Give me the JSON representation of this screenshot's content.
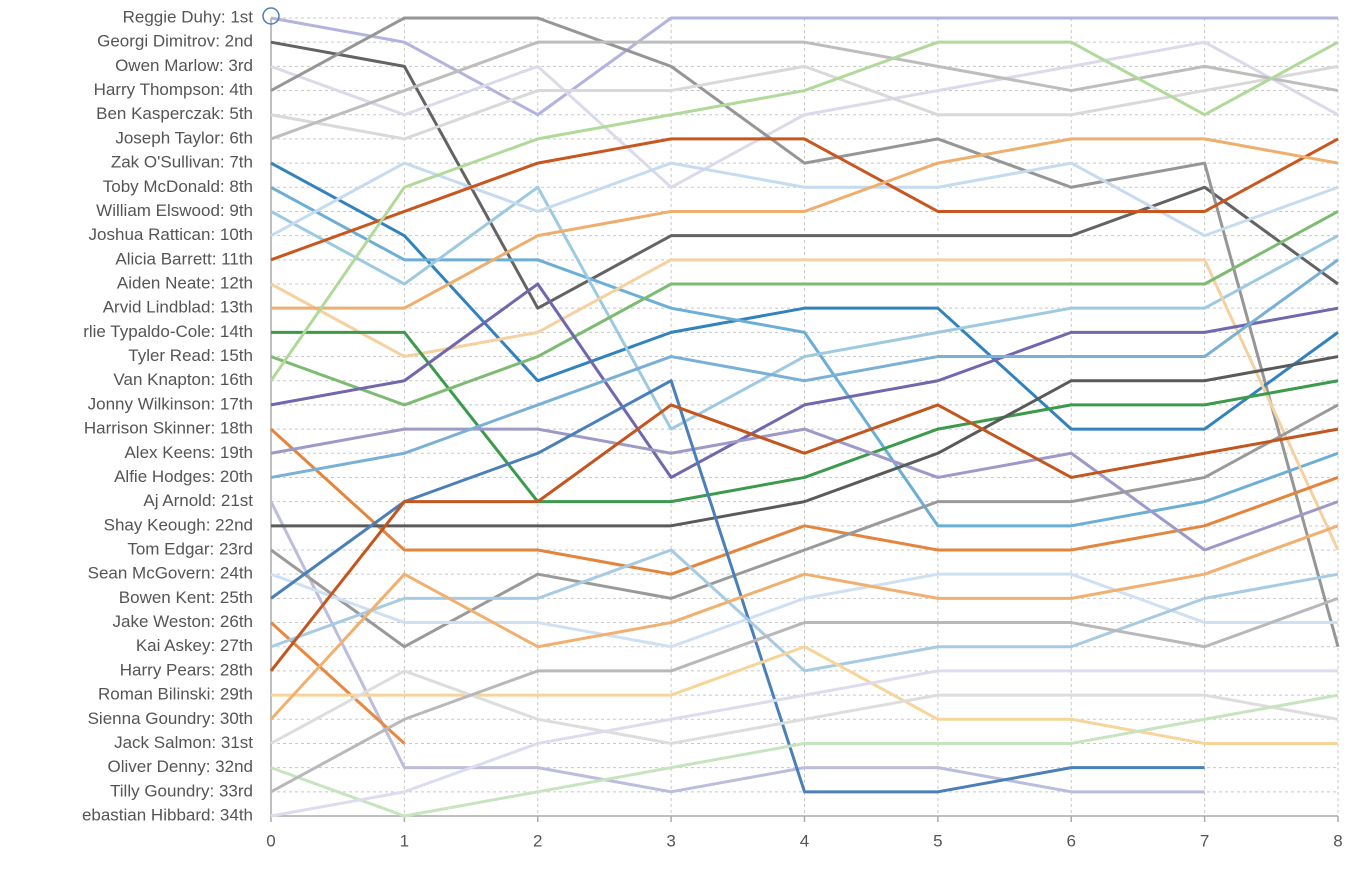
{
  "chart_data": {
    "type": "line",
    "x": [
      0,
      1,
      2,
      3,
      4,
      5,
      6,
      7,
      8
    ],
    "xlim": [
      0,
      8
    ],
    "xticks": [
      0,
      1,
      2,
      3,
      4,
      5,
      6,
      7,
      8
    ],
    "ylim": [
      1,
      34
    ],
    "y_inverted": true,
    "grid": true,
    "yticks": [
      {
        "value": 1,
        "label": "Reggie Duhy: 1st"
      },
      {
        "value": 2,
        "label": "Georgi Dimitrov: 2nd"
      },
      {
        "value": 3,
        "label": "Owen Marlow: 3rd"
      },
      {
        "value": 4,
        "label": "Harry Thompson: 4th"
      },
      {
        "value": 5,
        "label": "Ben Kasperczak: 5th"
      },
      {
        "value": 6,
        "label": "Joseph Taylor: 6th"
      },
      {
        "value": 7,
        "label": "Zak O'Sullivan: 7th"
      },
      {
        "value": 8,
        "label": "Toby McDonald: 8th"
      },
      {
        "value": 9,
        "label": "William Elswood: 9th"
      },
      {
        "value": 10,
        "label": "Joshua Rattican: 10th"
      },
      {
        "value": 11,
        "label": "Alicia Barrett: 11th"
      },
      {
        "value": 12,
        "label": "Aiden Neate: 12th"
      },
      {
        "value": 13,
        "label": "Arvid Lindblad: 13th"
      },
      {
        "value": 14,
        "label": "rlie Typaldo-Cole: 14th"
      },
      {
        "value": 15,
        "label": "Tyler Read: 15th"
      },
      {
        "value": 16,
        "label": "Van Knapton: 16th"
      },
      {
        "value": 17,
        "label": "Jonny Wilkinson: 17th"
      },
      {
        "value": 18,
        "label": "Harrison Skinner: 18th"
      },
      {
        "value": 19,
        "label": "Alex Keens: 19th"
      },
      {
        "value": 20,
        "label": "Alfie Hodges: 20th"
      },
      {
        "value": 21,
        "label": "Aj Arnold: 21st"
      },
      {
        "value": 22,
        "label": "Shay Keough: 22nd"
      },
      {
        "value": 23,
        "label": "Tom Edgar: 23rd"
      },
      {
        "value": 24,
        "label": "Sean McGovern: 24th"
      },
      {
        "value": 25,
        "label": "Bowen Kent: 25th"
      },
      {
        "value": 26,
        "label": "Jake Weston: 26th"
      },
      {
        "value": 27,
        "label": "Kai Askey: 27th"
      },
      {
        "value": 28,
        "label": "Harry Pears: 28th"
      },
      {
        "value": 29,
        "label": "Roman Bilinski: 29th"
      },
      {
        "value": 30,
        "label": "Sienna Goundry: 30th"
      },
      {
        "value": 31,
        "label": "Jack Salmon: 31st"
      },
      {
        "value": 32,
        "label": "Oliver Denny: 32nd"
      },
      {
        "value": 33,
        "label": "Tilly Goundry: 33rd"
      },
      {
        "value": 34,
        "label": "ebastian Hibbard: 34th"
      }
    ],
    "series": [
      {
        "color": "#b3b3dd",
        "values": [
          1,
          2,
          5,
          1,
          1,
          1,
          1,
          1,
          1
        ]
      },
      {
        "color": "#636363",
        "values": [
          2,
          3,
          13,
          10,
          10,
          10,
          10,
          8,
          12
        ]
      },
      {
        "color": "#dadaeb",
        "values": [
          3,
          5,
          3,
          8,
          5,
          4,
          3,
          2,
          5
        ]
      },
      {
        "color": "#969696",
        "values": [
          4,
          1,
          1,
          3,
          7,
          6,
          8,
          7,
          27
        ]
      },
      {
        "color": "#d9d9d9",
        "values": [
          5,
          6,
          4,
          4,
          3,
          5,
          5,
          4,
          3
        ]
      },
      {
        "color": "#bdbdbd",
        "values": [
          6,
          4,
          2,
          2,
          2,
          3,
          4,
          3,
          4
        ]
      },
      {
        "color": "#3182bd",
        "values": [
          7,
          10,
          16,
          14,
          13,
          13,
          18,
          18,
          14
        ]
      },
      {
        "color": "#6baed6",
        "values": [
          8,
          11,
          11,
          13,
          14,
          22,
          22,
          21,
          19
        ]
      },
      {
        "color": "#9ecae1",
        "values": [
          9,
          12,
          8,
          18,
          15,
          14,
          13,
          13,
          10
        ]
      },
      {
        "color": "#c6dbef",
        "values": [
          10,
          7,
          9,
          7,
          8,
          8,
          7,
          10,
          8
        ]
      },
      {
        "color": "#c8561f",
        "values": [
          11,
          9,
          7,
          6,
          6,
          9,
          9,
          9,
          6
        ]
      },
      {
        "color": "#f5d0a0",
        "values": [
          12,
          15,
          14,
          11,
          11,
          11,
          11,
          11,
          23
        ]
      },
      {
        "color": "#eeae6e",
        "values": [
          13,
          13,
          10,
          9,
          9,
          7,
          6,
          6,
          7
        ]
      },
      {
        "color": "#3b9a4b",
        "values": [
          14,
          14,
          21,
          21,
          20,
          18,
          17,
          17,
          16
        ]
      },
      {
        "color": "#7dbb72",
        "values": [
          15,
          17,
          15,
          12,
          12,
          12,
          12,
          12,
          9
        ]
      },
      {
        "color": "#b0d99a",
        "values": [
          16,
          8,
          6,
          5,
          4,
          2,
          2,
          5,
          2
        ]
      },
      {
        "color": "#7067ad",
        "values": [
          17,
          16,
          12,
          20,
          17,
          16,
          14,
          14,
          13
        ]
      },
      {
        "color": "#e3853d",
        "values": [
          18,
          23,
          23,
          24,
          22,
          23,
          23,
          22,
          20
        ]
      },
      {
        "color": "#9e9ac8",
        "values": [
          19,
          18,
          18,
          19,
          18,
          20,
          19,
          23,
          21
        ]
      },
      {
        "color": "#7aafd6",
        "values": [
          20,
          19,
          17,
          15,
          16,
          15,
          15,
          15,
          11
        ]
      },
      {
        "color": "#bcbddc",
        "values": [
          21,
          32,
          32,
          33,
          32,
          32,
          33,
          33,
          null
        ]
      },
      {
        "color": "#5a5a5a",
        "values": [
          22,
          22,
          22,
          22,
          21,
          19,
          16,
          16,
          15
        ]
      },
      {
        "color": "#9a9a9a",
        "values": [
          23,
          27,
          24,
          25,
          23,
          21,
          21,
          20,
          17
        ]
      },
      {
        "color": "#cfe0f2",
        "values": [
          24,
          26,
          26,
          27,
          25,
          24,
          24,
          26,
          26
        ]
      },
      {
        "color": "#4a7fb8",
        "values": [
          25,
          21,
          19,
          16,
          33,
          33,
          32,
          32,
          null
        ]
      },
      {
        "color": "#e8873f",
        "values": [
          26,
          31,
          null,
          null,
          null,
          null,
          null,
          null,
          null
        ]
      },
      {
        "color": "#a7cbe3",
        "values": [
          27,
          25,
          25,
          23,
          28,
          27,
          27,
          25,
          24
        ]
      },
      {
        "color": "#c3551f",
        "values": [
          28,
          21,
          21,
          17,
          19,
          17,
          20,
          19,
          18
        ]
      },
      {
        "color": "#f7d59a",
        "values": [
          29,
          29,
          29,
          29,
          27,
          30,
          30,
          31,
          31
        ]
      },
      {
        "color": "#f0b070",
        "values": [
          30,
          24,
          27,
          26,
          24,
          25,
          25,
          24,
          22
        ]
      },
      {
        "color": "#dddddd",
        "values": [
          31,
          28,
          30,
          31,
          30,
          29,
          29,
          29,
          30
        ]
      },
      {
        "color": "#c7e3bf",
        "values": [
          32,
          34,
          33,
          32,
          31,
          31,
          31,
          30,
          29
        ]
      },
      {
        "color": "#b8b8b8",
        "values": [
          33,
          30,
          28,
          28,
          26,
          26,
          26,
          27,
          25
        ]
      },
      {
        "color": "#dcdcee",
        "values": [
          34,
          33,
          31,
          30,
          29,
          28,
          28,
          28,
          28
        ]
      }
    ]
  }
}
